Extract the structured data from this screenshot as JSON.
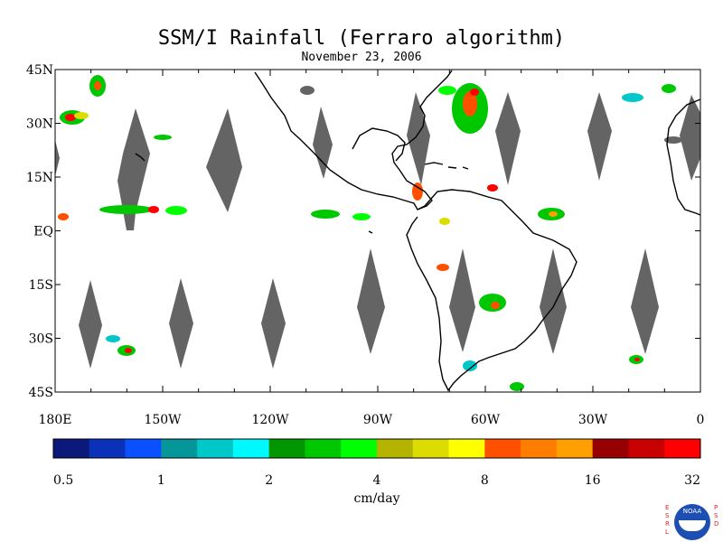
{
  "title": "SSM/I Rainfall (Ferraro algorithm)",
  "subtitle": "November 23, 2006",
  "lat_labels": [
    "45N",
    "30N",
    "15N",
    "EQ",
    "15S",
    "30S",
    "45S"
  ],
  "lon_labels": [
    "180E",
    "150W",
    "120W",
    "90W",
    "60W",
    "30W",
    "0"
  ],
  "colorbar": {
    "colors": [
      "#0b1a7a",
      "#0a32b8",
      "#0a50ff",
      "#05969a",
      "#00c8c8",
      "#00f8ff",
      "#009600",
      "#00c800",
      "#00ff00",
      "#b4b400",
      "#dcdc00",
      "#ffff00",
      "#ff5000",
      "#ff7d00",
      "#ffa000",
      "#960000",
      "#c80000",
      "#ff0000"
    ],
    "tick_labels": [
      "0.5",
      "1",
      "2",
      "4",
      "8",
      "16",
      "32"
    ],
    "unit": "cm/day"
  },
  "logo": {
    "left_letters": "ESRL",
    "right_letters": "PSD",
    "badge_text": "NOAA"
  },
  "missing_swath_color": "#646464",
  "land_outline_color": "#000000"
}
